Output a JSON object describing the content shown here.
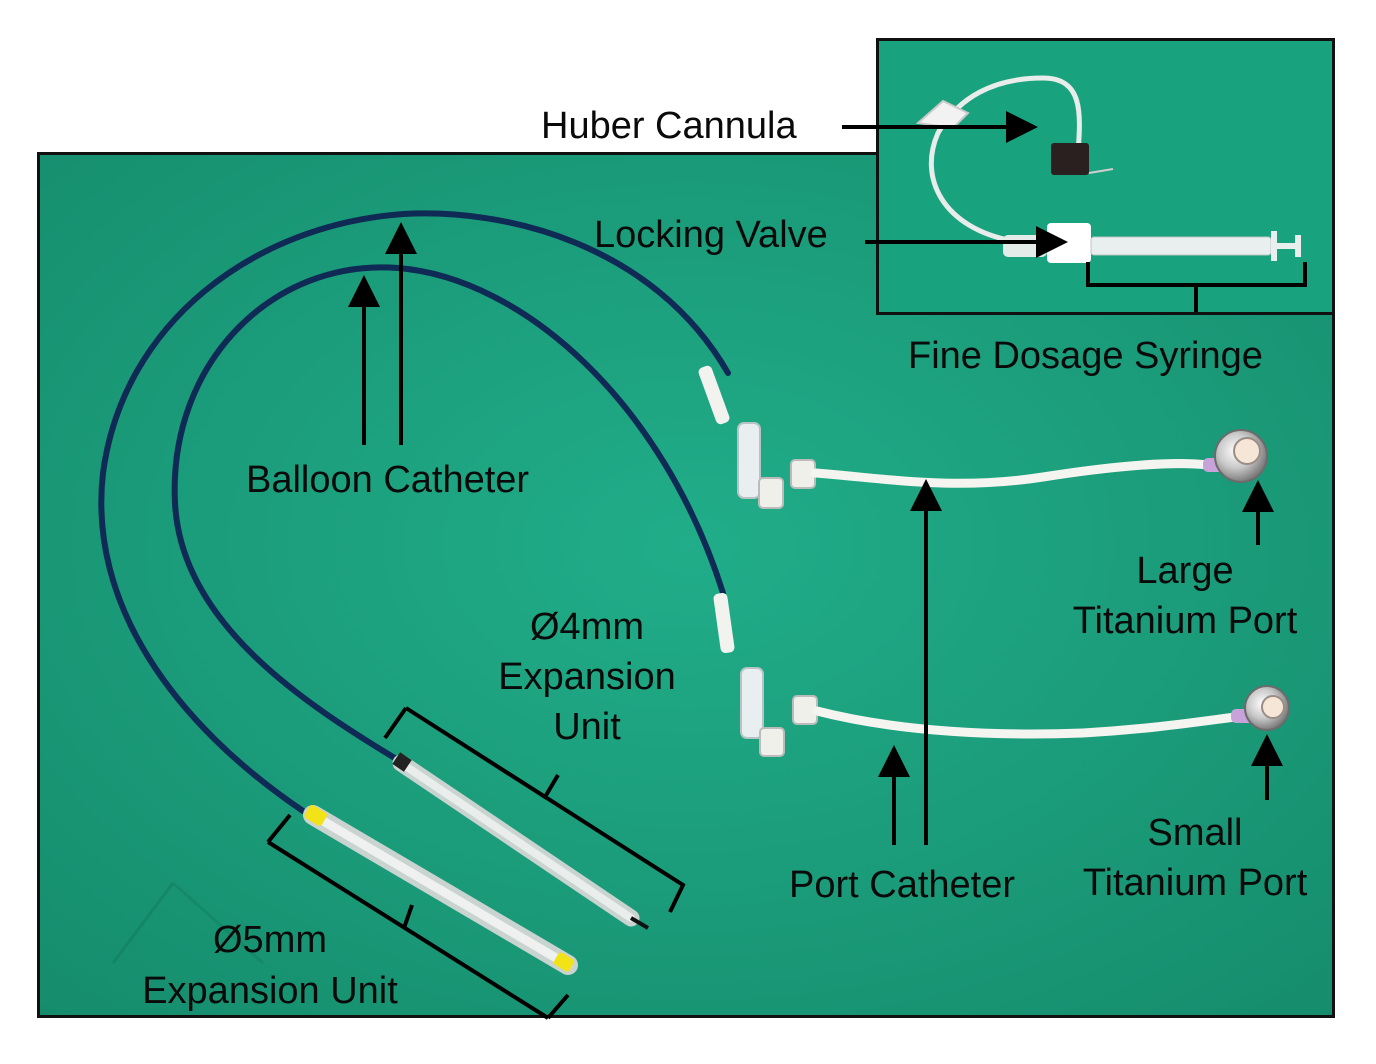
{
  "labels": {
    "huber_cannula": "Huber Cannula",
    "locking_valve": "Locking Valve",
    "fine_dosage_syringe": "Fine Dosage Syringe",
    "balloon_catheter": "Balloon Catheter",
    "large_port_line1": "Large",
    "large_port_line2": "Titanium Port",
    "small_port_line1": "Small",
    "small_port_line2": "Titanium Port",
    "port_catheter": "Port Catheter",
    "exp4_line1": "Ø4mm",
    "exp4_line2": "Expansion",
    "exp4_line3": "Unit",
    "exp5_line1": "Ø5mm",
    "exp5_line2": "Expansion Unit"
  },
  "colors": {
    "drape_green": "#1aa37f",
    "catheter_blue": "#0f2a55",
    "tube_white": "#f4f4f0",
    "label_black": "#0a0a0a"
  }
}
